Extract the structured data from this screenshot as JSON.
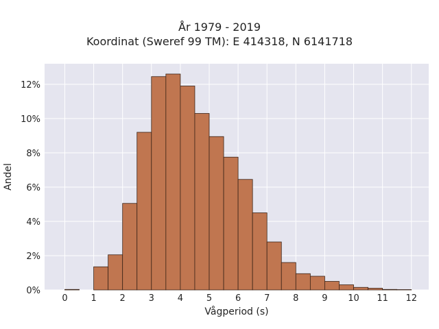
{
  "chart_data": {
    "type": "bar",
    "title": "År 1979 - 2019",
    "subtitle": "Koordinat (Sweref 99 TM): E 414318, N 6141718",
    "xlabel": "Vågperiod (s)",
    "ylabel": "Andel",
    "xlim": [
      -0.7,
      12.6
    ],
    "ylim": [
      0,
      13.2
    ],
    "xticks": [
      0,
      1,
      2,
      3,
      4,
      5,
      6,
      7,
      8,
      9,
      10,
      11,
      12
    ],
    "yticks": [
      0,
      2,
      4,
      6,
      8,
      10,
      12
    ],
    "ytick_suffix": "%",
    "bin_width": 0.5,
    "bins_start": [
      0,
      0.5,
      1,
      1.5,
      2,
      2.5,
      3,
      3.5,
      4,
      4.5,
      5,
      5.5,
      6,
      6.5,
      7,
      7.5,
      8,
      8.5,
      9,
      9.5,
      10,
      10.5,
      11,
      11.5
    ],
    "values": [
      0.03,
      0,
      1.35,
      2.05,
      5.05,
      9.2,
      12.45,
      12.6,
      11.9,
      10.3,
      8.95,
      7.75,
      6.45,
      4.5,
      2.8,
      1.6,
      0.95,
      0.8,
      0.5,
      0.3,
      0.15,
      0.1,
      0.03,
      0.02
    ],
    "bar_color": "#c07650",
    "bar_edge": "#3a2418",
    "background": "#e5e5ef",
    "grid": true
  }
}
